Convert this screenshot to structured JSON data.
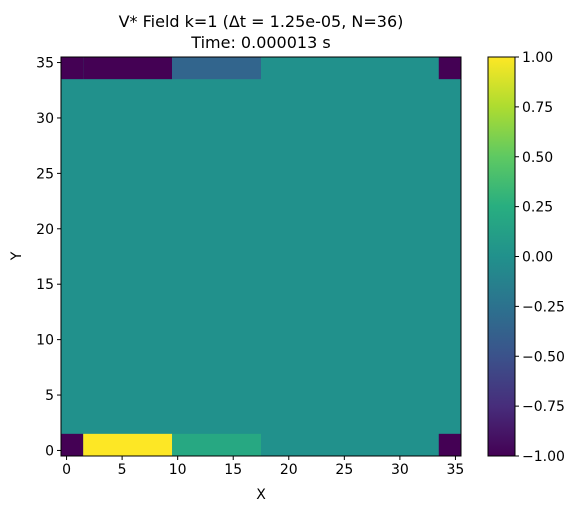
{
  "chart_data": {
    "type": "heatmap",
    "title_line1": "V* Field k=1 (Δt = 1.25e-05, N=36)",
    "title_line2": "Time: 0.000013 s",
    "xlabel": "X",
    "ylabel": "Y",
    "xlim": [
      -0.5,
      35.5
    ],
    "ylim": [
      -0.5,
      35.5
    ],
    "xticks": [
      0,
      5,
      10,
      15,
      20,
      25,
      30,
      35
    ],
    "yticks": [
      0,
      5,
      10,
      15,
      20,
      25,
      30,
      35
    ],
    "colormap": "viridis",
    "vmin": -1.0,
    "vmax": 1.0,
    "colorbar_ticks": [
      "1.00",
      "0.75",
      "0.50",
      "0.25",
      "0.00",
      "−0.25",
      "−0.50",
      "−0.75",
      "−1.00"
    ],
    "colorbar_tick_values": [
      1.0,
      0.75,
      0.5,
      0.25,
      0.0,
      -0.25,
      -0.5,
      -0.75,
      -1.0
    ],
    "background_value": 0.0,
    "regions": [
      {
        "x0": -0.5,
        "x1": 1.5,
        "y0": 33.5,
        "y1": 35.5,
        "value": -1.0
      },
      {
        "x0": 1.5,
        "x1": 9.5,
        "y0": 33.5,
        "y1": 35.5,
        "value": -1.0
      },
      {
        "x0": 9.5,
        "x1": 17.5,
        "y0": 33.5,
        "y1": 35.5,
        "value": -0.35
      },
      {
        "x0": 33.5,
        "x1": 35.5,
        "y0": 33.5,
        "y1": 35.5,
        "value": -1.0
      },
      {
        "x0": -0.5,
        "x1": 1.5,
        "y0": -0.5,
        "y1": 1.5,
        "value": -1.0
      },
      {
        "x0": 1.5,
        "x1": 9.5,
        "y0": -0.5,
        "y1": 1.5,
        "value": 1.0
      },
      {
        "x0": 9.5,
        "x1": 17.5,
        "y0": -0.5,
        "y1": 1.5,
        "value": 0.2
      },
      {
        "x0": 33.5,
        "x1": 35.5,
        "y0": -0.5,
        "y1": 1.5,
        "value": -1.0
      }
    ]
  }
}
